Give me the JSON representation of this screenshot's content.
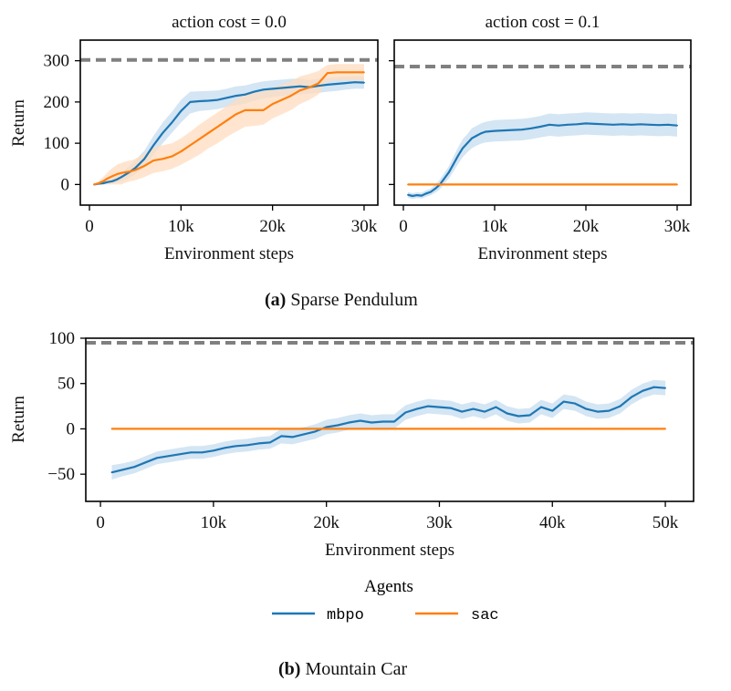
{
  "figure": {
    "caption_a_label": "(a)",
    "caption_a_text": "Sparse Pendulum",
    "caption_b_label": "(b)",
    "caption_b_text": "Mountain Car",
    "legend_title": "Agents",
    "legend_items": [
      "mbpo",
      "sac"
    ],
    "colors": {
      "mbpo": "#1f77b4",
      "mbpo_band": "#c6dcef",
      "sac": "#ff7f0e",
      "sac_band": "#ffdcbf",
      "optimal": "#808080"
    }
  },
  "chart_data": [
    {
      "type": "line",
      "title": "action cost = 0.0",
      "xlabel": "Environment steps",
      "ylabel": "Return",
      "xlim": [
        -1000,
        31500
      ],
      "ylim": [
        -50,
        350
      ],
      "xticks": [
        0,
        10000,
        20000,
        30000
      ],
      "xtick_labels": [
        "0",
        "10k",
        "20k",
        "30k"
      ],
      "yticks": [
        0,
        100,
        200,
        300
      ],
      "ytick_labels": [
        "0",
        "100",
        "200",
        "300"
      ],
      "reference_line": {
        "name": "optimal",
        "y": 302
      },
      "series": [
        {
          "name": "mbpo",
          "x": [
            500,
            1000,
            1500,
            2000,
            2500,
            3000,
            3500,
            4000,
            4500,
            5000,
            6000,
            7000,
            8000,
            9000,
            10000,
            11000,
            12000,
            13000,
            14000,
            15000,
            16000,
            17000,
            18000,
            19000,
            20000,
            21000,
            22000,
            23000,
            24000,
            25000,
            26000,
            27000,
            28000,
            29000,
            30000
          ],
          "y": [
            0,
            2,
            3,
            6,
            8,
            12,
            18,
            25,
            32,
            40,
            62,
            95,
            125,
            150,
            178,
            200,
            202,
            203,
            205,
            210,
            215,
            218,
            225,
            230,
            232,
            234,
            236,
            238,
            236,
            239,
            242,
            244,
            246,
            248,
            247
          ],
          "lower": [
            0,
            0,
            0,
            2,
            3,
            5,
            8,
            12,
            18,
            25,
            42,
            72,
            100,
            125,
            150,
            172,
            178,
            180,
            183,
            188,
            192,
            196,
            203,
            208,
            212,
            214,
            216,
            218,
            220,
            222,
            225,
            227,
            230,
            232,
            232
          ],
          "upper": [
            0,
            4,
            6,
            10,
            14,
            20,
            28,
            38,
            48,
            58,
            82,
            118,
            150,
            176,
            205,
            225,
            226,
            227,
            228,
            232,
            238,
            240,
            246,
            250,
            252,
            254,
            256,
            257,
            253,
            256,
            258,
            260,
            262,
            263,
            262
          ]
        },
        {
          "name": "sac",
          "x": [
            500,
            1000,
            1500,
            2000,
            2500,
            3000,
            3500,
            4000,
            4500,
            5000,
            6000,
            7000,
            8000,
            9000,
            10000,
            11000,
            12000,
            13000,
            14000,
            15000,
            16000,
            17000,
            18000,
            19000,
            20000,
            21000,
            22000,
            23000,
            24000,
            25000,
            26000,
            27000,
            28000,
            29000,
            30000
          ],
          "y": [
            0,
            3,
            8,
            15,
            20,
            25,
            28,
            30,
            32,
            35,
            45,
            58,
            62,
            68,
            80,
            95,
            110,
            125,
            140,
            155,
            170,
            180,
            180,
            180,
            195,
            205,
            215,
            228,
            235,
            245,
            270,
            272,
            272,
            272,
            272
          ],
          "lower": [
            0,
            0,
            0,
            0,
            0,
            0,
            0,
            5,
            8,
            10,
            18,
            28,
            32,
            38,
            48,
            60,
            72,
            88,
            100,
            115,
            128,
            140,
            142,
            145,
            160,
            170,
            180,
            195,
            205,
            218,
            250,
            252,
            252,
            252,
            252
          ],
          "upper": [
            0,
            8,
            18,
            30,
            40,
            48,
            52,
            56,
            58,
            62,
            75,
            90,
            95,
            100,
            112,
            128,
            145,
            160,
            175,
            190,
            205,
            218,
            222,
            225,
            235,
            242,
            250,
            262,
            268,
            275,
            290,
            292,
            292,
            292,
            292
          ]
        }
      ]
    },
    {
      "type": "line",
      "title": "action cost = 0.1",
      "xlabel": "Environment steps",
      "ylabel": "",
      "xlim": [
        -1000,
        31500
      ],
      "ylim": [
        -50,
        350
      ],
      "xticks": [
        0,
        10000,
        20000,
        30000
      ],
      "xtick_labels": [
        "0",
        "10k",
        "20k",
        "30k"
      ],
      "yticks": [
        0,
        100,
        200,
        300
      ],
      "ytick_labels": [
        "",
        "",
        "",
        ""
      ],
      "reference_line": {
        "name": "optimal",
        "y": 286
      },
      "series": [
        {
          "name": "mbpo",
          "x": [
            500,
            1000,
            1500,
            2000,
            2500,
            3000,
            3500,
            4000,
            4500,
            5000,
            5500,
            6000,
            6500,
            7000,
            7500,
            8000,
            8500,
            9000,
            10000,
            11000,
            12000,
            13000,
            14000,
            15000,
            16000,
            17000,
            18000,
            19000,
            20000,
            21000,
            22000,
            23000,
            24000,
            25000,
            26000,
            27000,
            28000,
            29000,
            30000
          ],
          "y": [
            -25,
            -28,
            -26,
            -27,
            -22,
            -18,
            -10,
            0,
            15,
            30,
            50,
            70,
            88,
            100,
            112,
            118,
            124,
            128,
            130,
            131,
            132,
            133,
            136,
            140,
            145,
            143,
            145,
            146,
            148,
            147,
            146,
            145,
            146,
            145,
            146,
            145,
            144,
            145,
            143
          ],
          "lower": [
            -32,
            -35,
            -33,
            -34,
            -30,
            -26,
            -20,
            -12,
            2,
            15,
            32,
            50,
            66,
            78,
            88,
            94,
            99,
            102,
            104,
            105,
            106,
            107,
            110,
            114,
            118,
            116,
            118,
            119,
            121,
            120,
            119,
            118,
            119,
            118,
            119,
            118,
            117,
            118,
            116
          ],
          "upper": [
            -18,
            -21,
            -19,
            -20,
            -14,
            -10,
            0,
            12,
            28,
            45,
            68,
            90,
            110,
            122,
            136,
            142,
            148,
            152,
            156,
            157,
            158,
            159,
            162,
            166,
            172,
            170,
            172,
            173,
            175,
            174,
            173,
            172,
            173,
            172,
            173,
            172,
            171,
            172,
            170
          ]
        },
        {
          "name": "sac",
          "x": [
            500,
            30000
          ],
          "y": [
            0,
            0
          ],
          "lower": [
            0,
            0
          ],
          "upper": [
            0,
            0
          ]
        }
      ]
    },
    {
      "type": "line",
      "title": "",
      "xlabel": "Environment steps",
      "ylabel": "Return",
      "xlim": [
        -1300,
        52500
      ],
      "ylim": [
        -80,
        100
      ],
      "xticks": [
        0,
        10000,
        20000,
        30000,
        40000,
        50000
      ],
      "xtick_labels": [
        "0",
        "10k",
        "20k",
        "30k",
        "40k",
        "50k"
      ],
      "yticks": [
        -50,
        0,
        50,
        100
      ],
      "ytick_labels": [
        "−50",
        "0",
        "50",
        "100"
      ],
      "reference_line": {
        "name": "optimal",
        "y": 95
      },
      "series": [
        {
          "name": "mbpo",
          "x": [
            1000,
            2000,
            3000,
            4000,
            5000,
            6000,
            7000,
            8000,
            9000,
            10000,
            11000,
            12000,
            13000,
            14000,
            15000,
            16000,
            17000,
            18000,
            19000,
            20000,
            21000,
            22000,
            23000,
            24000,
            25000,
            26000,
            27000,
            28000,
            29000,
            30000,
            31000,
            32000,
            33000,
            34000,
            35000,
            36000,
            37000,
            38000,
            39000,
            40000,
            41000,
            42000,
            43000,
            44000,
            45000,
            46000,
            47000,
            48000,
            49000,
            50000
          ],
          "y": [
            -48,
            -45,
            -42,
            -37,
            -32,
            -30,
            -28,
            -26,
            -26,
            -24,
            -21,
            -19,
            -18,
            -16,
            -15,
            -8,
            -9,
            -6,
            -3,
            2,
            4,
            7,
            9,
            7,
            8,
            8,
            18,
            22,
            25,
            24,
            23,
            19,
            22,
            19,
            24,
            17,
            14,
            15,
            24,
            20,
            30,
            28,
            22,
            19,
            20,
            25,
            35,
            42,
            46,
            45
          ],
          "lower": [
            -56,
            -52,
            -49,
            -44,
            -39,
            -37,
            -35,
            -33,
            -33,
            -31,
            -28,
            -26,
            -25,
            -23,
            -22,
            -16,
            -17,
            -14,
            -11,
            -6,
            -4,
            -1,
            1,
            -1,
            0,
            0,
            10,
            14,
            17,
            16,
            15,
            11,
            14,
            11,
            16,
            9,
            6,
            7,
            16,
            12,
            22,
            20,
            14,
            11,
            12,
            17,
            27,
            34,
            38,
            37
          ],
          "upper": [
            -40,
            -38,
            -35,
            -30,
            -25,
            -23,
            -21,
            -19,
            -19,
            -17,
            -14,
            -12,
            -11,
            -9,
            -8,
            0,
            -1,
            2,
            5,
            10,
            12,
            15,
            17,
            15,
            16,
            16,
            26,
            30,
            33,
            32,
            31,
            27,
            30,
            27,
            32,
            25,
            22,
            23,
            32,
            28,
            38,
            36,
            30,
            27,
            28,
            33,
            43,
            50,
            54,
            53
          ]
        },
        {
          "name": "sac",
          "x": [
            1000,
            50000
          ],
          "y": [
            0,
            0
          ],
          "lower": [
            0,
            0
          ],
          "upper": [
            0,
            0
          ]
        }
      ]
    }
  ]
}
